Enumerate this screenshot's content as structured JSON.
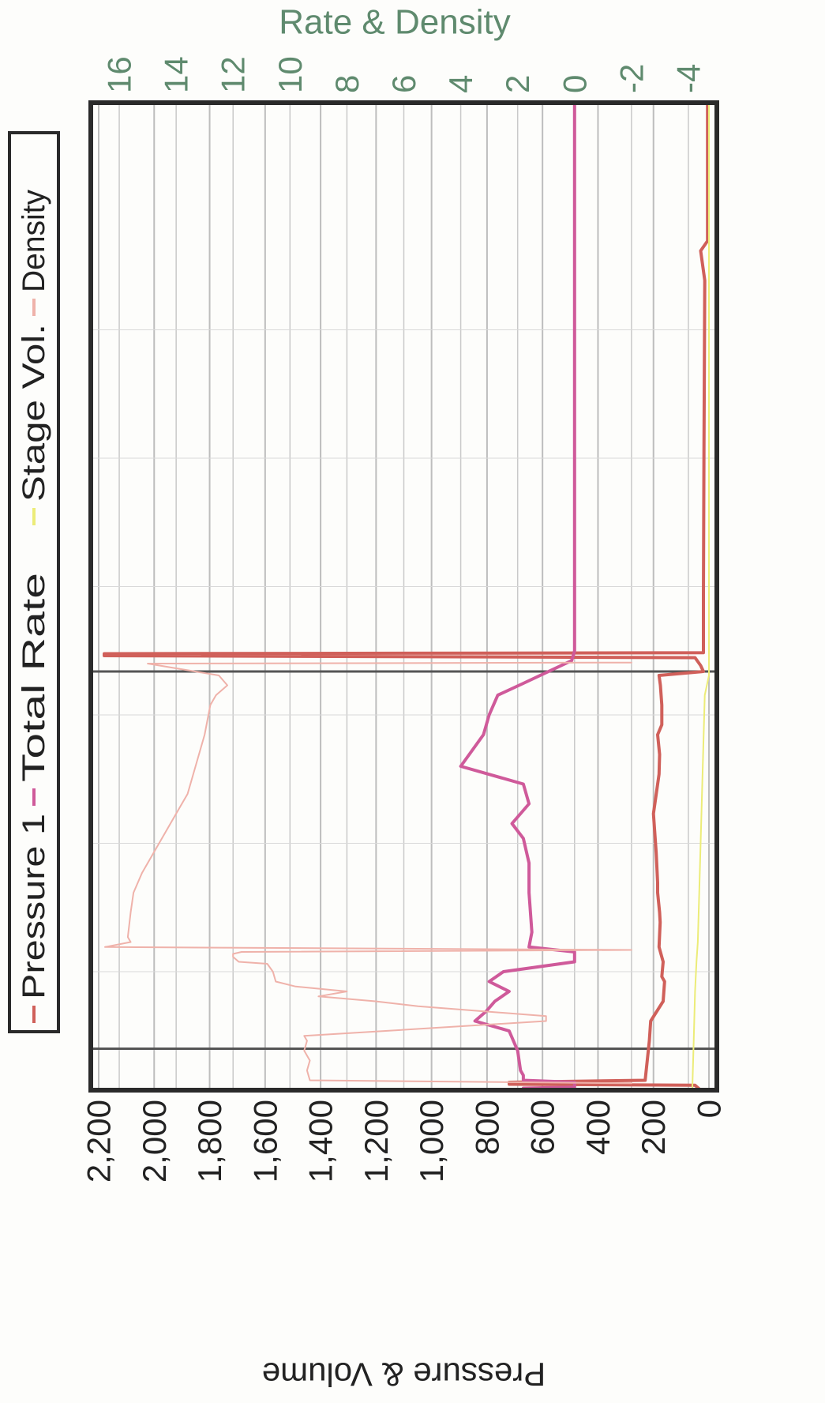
{
  "chart_data": {
    "type": "line",
    "orientation": "rotated-90-clockwise",
    "title": "",
    "left_axis": {
      "label": "Pressure & Volume",
      "range": [
        0,
        2200
      ],
      "ticks": [
        "0",
        "200",
        "400",
        "600",
        "800",
        "1,000",
        "1,200",
        "1,400",
        "1,600",
        "1,800",
        "2,000",
        "2,200"
      ],
      "tick_values": [
        0,
        200,
        400,
        600,
        800,
        1000,
        1200,
        1400,
        1600,
        1800,
        2000,
        2200
      ]
    },
    "right_axis": {
      "label": "Rate & Density",
      "range": [
        -5,
        17
      ],
      "ticks": [
        "-4",
        "-2",
        "0",
        "2",
        "4",
        "6",
        "8",
        "10",
        "12",
        "14",
        "16"
      ],
      "tick_values": [
        -4,
        -2,
        0,
        2,
        4,
        6,
        8,
        10,
        12,
        14,
        16
      ]
    },
    "time_range": [
      0,
      1000
    ],
    "grid": true,
    "legend_position": "top",
    "legend": {
      "entries": [
        {
          "label": "Pressure 1",
          "color": "#d0605a"
        },
        {
          "label": "Total Rate",
          "color": "#cf5a9a"
        },
        {
          "label": "Stage Vol.",
          "color": "#ecec78"
        },
        {
          "label": "Density",
          "color": "#efb2aa"
        }
      ]
    },
    "series": [
      {
        "name": "Pressure 1",
        "axis": "left",
        "color": "#d0605a",
        "width": 4,
        "points": [
          [
            0,
            5
          ],
          [
            140,
            5
          ],
          [
            150,
            30
          ],
          [
            180,
            15
          ],
          [
            350,
            18
          ],
          [
            500,
            20
          ],
          [
            557,
            20
          ],
          [
            558,
            2180
          ],
          [
            560,
            2180
          ],
          [
            562,
            50
          ],
          [
            570,
            30
          ],
          [
            576,
            20
          ],
          [
            580,
            180
          ],
          [
            590,
            175
          ],
          [
            610,
            170
          ],
          [
            630,
            170
          ],
          [
            640,
            185
          ],
          [
            660,
            178
          ],
          [
            680,
            180
          ],
          [
            720,
            200
          ],
          [
            760,
            190
          ],
          [
            790,
            185
          ],
          [
            800,
            185
          ],
          [
            820,
            178
          ],
          [
            830,
            176
          ],
          [
            855,
            180
          ],
          [
            870,
            165
          ],
          [
            885,
            170
          ],
          [
            890,
            160
          ],
          [
            910,
            165
          ],
          [
            930,
            210
          ],
          [
            950,
            215
          ],
          [
            990,
            230
          ],
          [
            992,
            720
          ],
          [
            994,
            720
          ],
          [
            995,
            50
          ],
          [
            1000,
            30
          ]
        ]
      },
      {
        "name": "Total Rate",
        "axis": "right",
        "color": "#cf5a9a",
        "width": 4,
        "points": [
          [
            0,
            0
          ],
          [
            500,
            0
          ],
          [
            520,
            0
          ],
          [
            555,
            0
          ],
          [
            565,
            0.1
          ],
          [
            588,
            1.8
          ],
          [
            600,
            2.7
          ],
          [
            620,
            3.0
          ],
          [
            640,
            3.2
          ],
          [
            660,
            3.7
          ],
          [
            672,
            4.0
          ],
          [
            690,
            1.8
          ],
          [
            710,
            1.6
          ],
          [
            730,
            2.2
          ],
          [
            745,
            1.8
          ],
          [
            770,
            1.6
          ],
          [
            800,
            1.6
          ],
          [
            840,
            1.5
          ],
          [
            855,
            1.6
          ],
          [
            860,
            0
          ],
          [
            870,
            0
          ],
          [
            880,
            2.5
          ],
          [
            890,
            3.0
          ],
          [
            900,
            2.3
          ],
          [
            910,
            2.8
          ],
          [
            920,
            3.1
          ],
          [
            930,
            3.5
          ],
          [
            940,
            2.3
          ],
          [
            960,
            2.0
          ],
          [
            980,
            1.9
          ],
          [
            985,
            1.8
          ],
          [
            990,
            1.8
          ],
          [
            992,
            0
          ],
          [
            997,
            0
          ],
          [
            998,
            1.8
          ],
          [
            1000,
            1.8
          ]
        ]
      },
      {
        "name": "Stage Vol.",
        "axis": "left",
        "color": "#ecec78",
        "width": 2,
        "points": [
          [
            0,
            0
          ],
          [
            580,
            0
          ],
          [
            600,
            15
          ],
          [
            700,
            25
          ],
          [
            800,
            35
          ],
          [
            850,
            40
          ],
          [
            870,
            45
          ],
          [
            900,
            50
          ],
          [
            950,
            55
          ],
          [
            1000,
            60
          ]
        ]
      },
      {
        "name": "Density",
        "axis": "right",
        "color": "#efb2aa",
        "width": 2,
        "points": [
          [
            0,
            null
          ],
          [
            567,
            -2
          ],
          [
            568,
            15
          ],
          [
            580,
            12.5
          ],
          [
            590,
            12.2
          ],
          [
            600,
            12.6
          ],
          [
            610,
            12.8
          ],
          [
            640,
            13.0
          ],
          [
            660,
            13.2
          ],
          [
            680,
            13.4
          ],
          [
            700,
            13.6
          ],
          [
            720,
            14.0
          ],
          [
            740,
            14.4
          ],
          [
            760,
            14.8
          ],
          [
            780,
            15.2
          ],
          [
            800,
            15.5
          ],
          [
            820,
            15.6
          ],
          [
            845,
            15.7
          ],
          [
            850,
            15.6
          ],
          [
            855,
            16.5
          ],
          [
            858,
            -2
          ],
          [
            860,
            11.7
          ],
          [
            862,
            12.0
          ],
          [
            865,
            12.0
          ],
          [
            870,
            11.8
          ],
          [
            872,
            10.8
          ],
          [
            880,
            10.6
          ],
          [
            890,
            10.5
          ],
          [
            895,
            9.8
          ],
          [
            900,
            8.0
          ],
          [
            905,
            9.0
          ],
          [
            910,
            7.0
          ],
          [
            915,
            5.5
          ],
          [
            925,
            1.0
          ],
          [
            930,
            1.0
          ],
          [
            945,
            9.5
          ],
          [
            950,
            9.4
          ],
          [
            960,
            9.5
          ],
          [
            970,
            9.3
          ],
          [
            980,
            9.4
          ],
          [
            990,
            9.3
          ],
          [
            993,
            -2
          ],
          [
            996,
            null
          ]
        ]
      }
    ]
  }
}
